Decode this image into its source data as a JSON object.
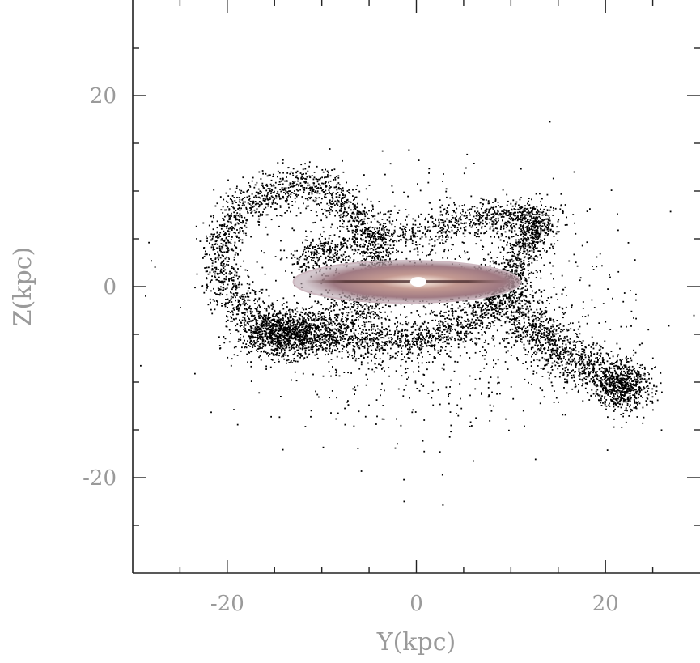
{
  "chart_data": {
    "type": "scatter",
    "xlabel": "Y(kpc)",
    "ylabel": "Z(kpc)",
    "xlim": [
      -30,
      30
    ],
    "ylim": [
      -30,
      30
    ],
    "x_ticks": [
      {
        "value": -20,
        "label": "-20"
      },
      {
        "value": 0,
        "label": "0"
      },
      {
        "value": 20,
        "label": "20"
      }
    ],
    "y_ticks": [
      {
        "value": 20,
        "label": "20"
      },
      {
        "value": 0,
        "label": "0"
      },
      {
        "value": -20,
        "label": "-20"
      }
    ],
    "x_minor_ticks": [
      -25,
      -15,
      -10,
      -5,
      5,
      10,
      15,
      25
    ],
    "y_minor_ticks": [
      25,
      15,
      10,
      5,
      -5,
      -10,
      -15,
      -25
    ],
    "grid": false,
    "series": [
      {
        "marker_color": "#000000",
        "structures": [
          {
            "kind": "loop",
            "center": [
              -12.5,
              3.0
            ],
            "rx": 8.2,
            "ry": 7.4,
            "tilt": -8,
            "weight": 0.26
          },
          {
            "kind": "arc",
            "path": [
              [
                -13,
                -5
              ],
              [
                -6,
                -5.8
              ],
              [
                0,
                -5.5
              ],
              [
                6,
                -3.5
              ],
              [
                9,
                0
              ],
              [
                12,
                5
              ],
              [
                13,
                7
              ],
              [
                9,
                7.5
              ],
              [
                2,
                6.5
              ],
              [
                -8,
                4
              ],
              [
                -12,
                3
              ]
            ],
            "weight": 0.3
          },
          {
            "kind": "tail",
            "path": [
              [
                9,
                1
              ],
              [
                11,
                -3
              ],
              [
                14,
                -6
              ],
              [
                17,
                -8
              ],
              [
                21,
                -10
              ],
              [
                23,
                -11
              ]
            ],
            "weight": 0.16
          },
          {
            "kind": "clump",
            "center": [
              -14.5,
              -5.0
            ],
            "sx": 2.3,
            "sy": 1.2,
            "weight": 0.1
          },
          {
            "kind": "clump",
            "center": [
              21.5,
              -10.0
            ],
            "sx": 1.5,
            "sy": 1.2,
            "weight": 0.04
          },
          {
            "kind": "halo",
            "center": [
              2.0,
              -2.5
            ],
            "sx": 10.0,
            "sy": 6.0,
            "weight": 0.14
          }
        ]
      }
    ],
    "overlay_image": {
      "description": "edge-on disk galaxy",
      "center": [
        -1.0,
        0.5
      ],
      "half_width": 12.0,
      "half_height": 2.2
    }
  }
}
